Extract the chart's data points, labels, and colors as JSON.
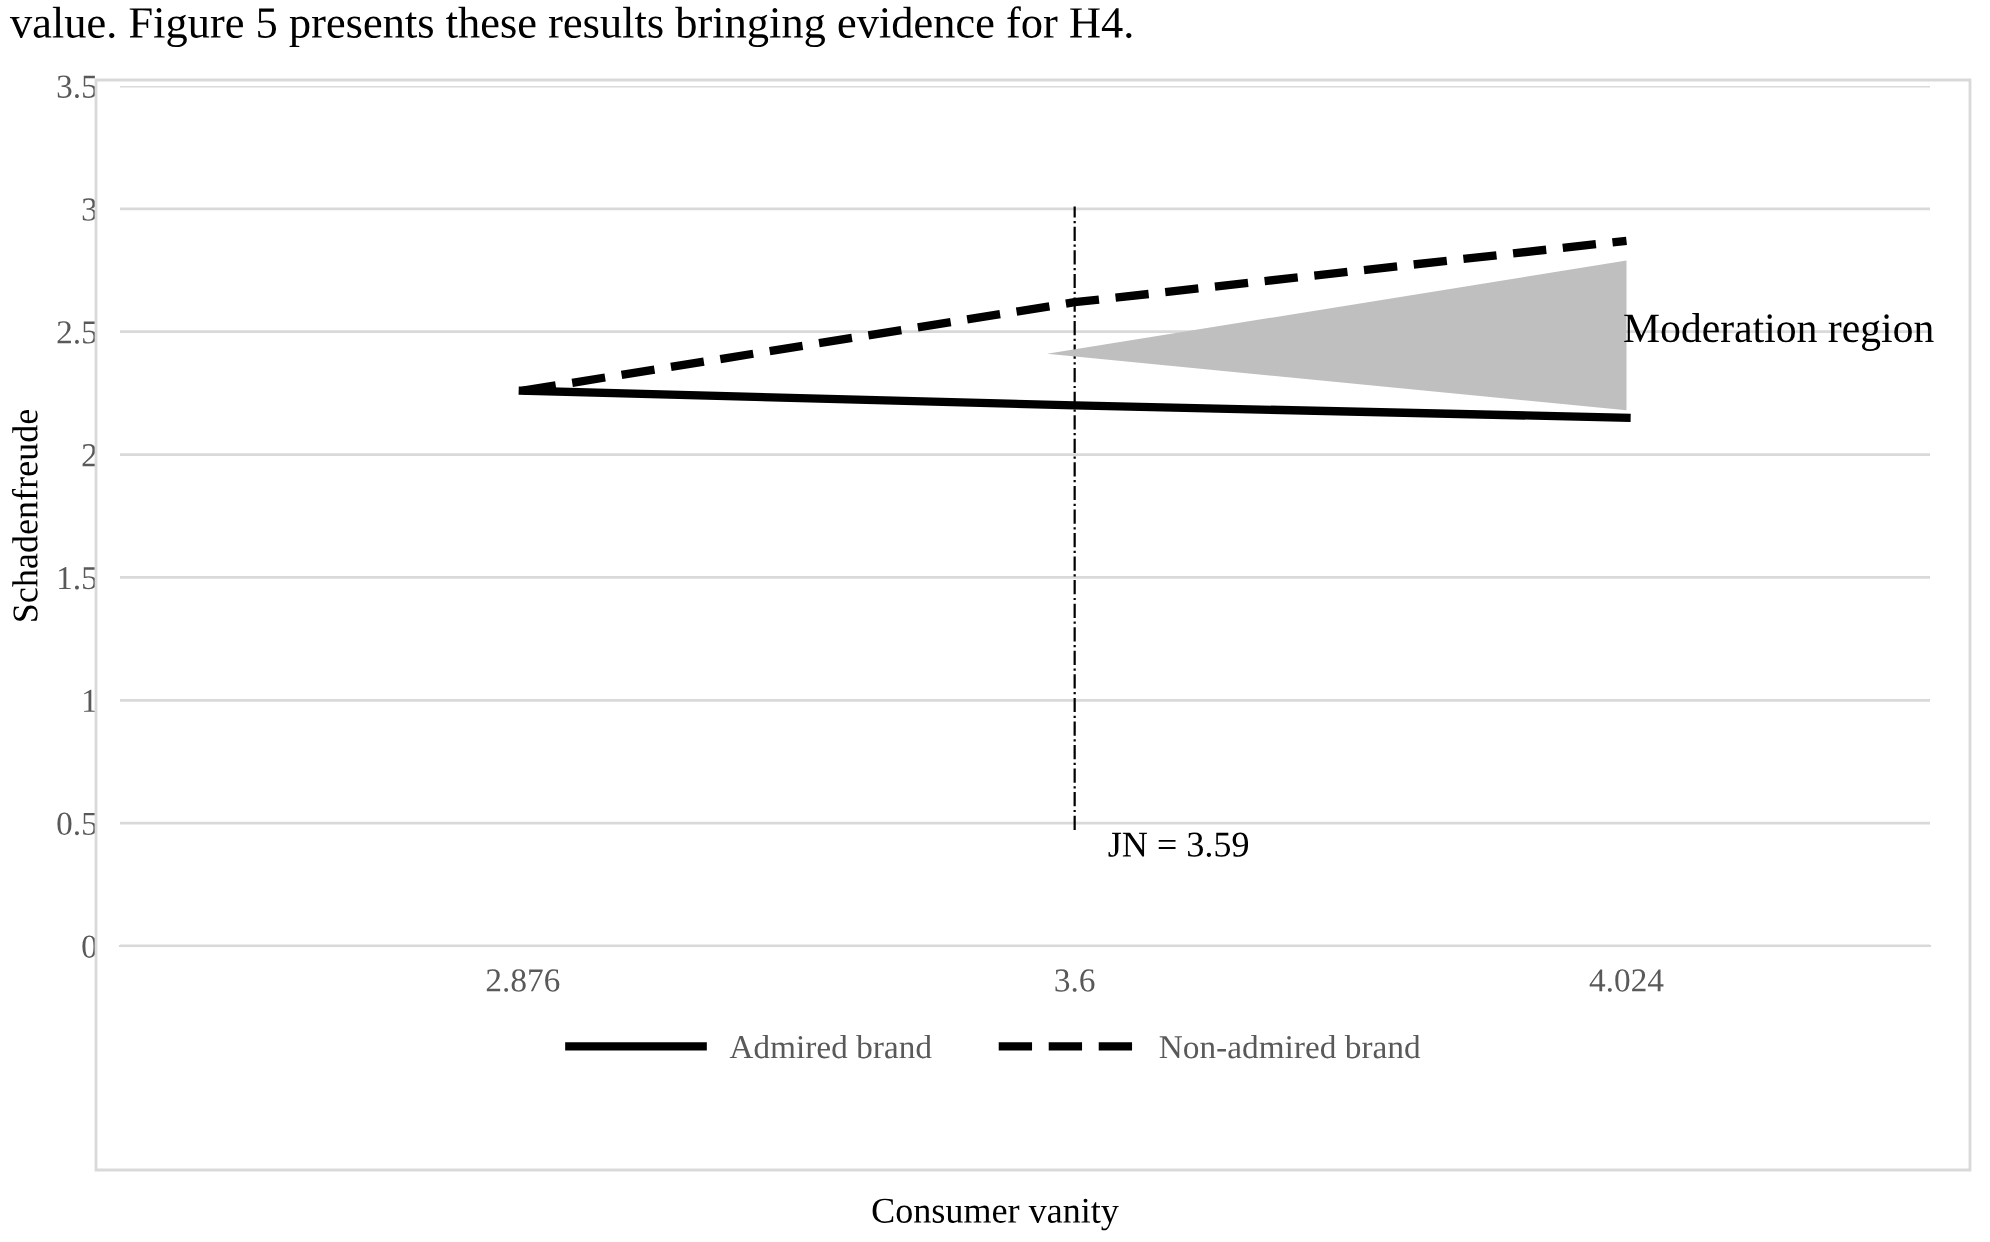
{
  "chart_data": {
    "type": "line",
    "ylabel": "Schadenfreude",
    "categories": [
      "2.876",
      "3.6",
      "4.024"
    ],
    "series": [
      {
        "name": "Admired brand",
        "color": "#000000",
        "values": [
          2.26,
          2.2,
          2.15
        ],
        "line_style": "solid"
      },
      {
        "name": "Non-admired brand",
        "color": "#000000",
        "values": [
          2.26,
          2.62,
          2.87
        ],
        "line_style": "dashed"
      }
    ],
    "ylim": [
      0,
      3.5
    ],
    "yticks": [
      0,
      0.5,
      1,
      1.5,
      2,
      2.5,
      3,
      3.5
    ],
    "grid": "y",
    "legend": "bottom",
    "ref_lines": [
      {
        "axis": "x",
        "value": "3.6",
        "label": "JN = 3.59",
        "color": "#000000",
        "line_style": "dashdot"
      }
    ],
    "annotations": [
      "value. Figure 5 presents these results bringing evidence for H4.",
      "Moderation region",
      "Consumer vanity"
    ]
  }
}
